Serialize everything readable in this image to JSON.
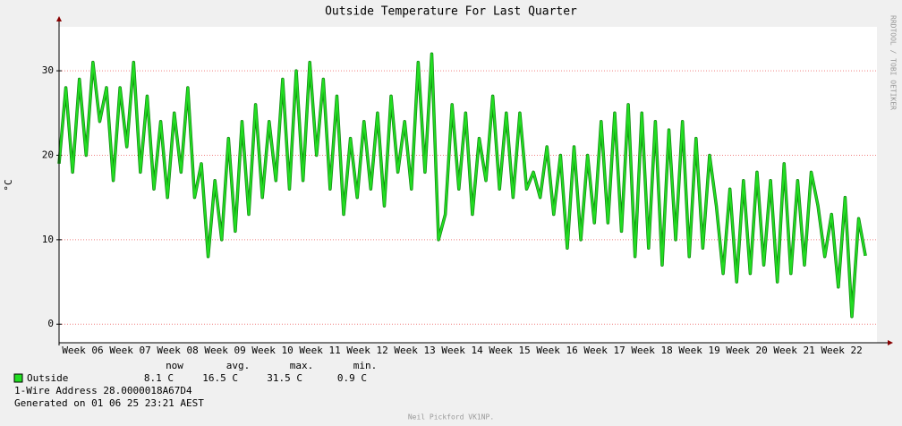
{
  "chart_data": {
    "type": "line",
    "title": "Outside Temperature For Last Quarter",
    "y_label": "°C",
    "watermark": "RRDTOOL / TOBI OETIKER",
    "x": [
      0,
      1,
      2,
      3,
      4,
      5,
      6,
      7,
      8,
      9,
      10,
      11,
      12,
      13,
      14,
      15,
      16,
      17,
      18,
      19,
      20,
      21,
      22,
      23,
      24,
      25,
      26,
      27,
      28,
      29,
      30,
      31,
      32,
      33,
      34,
      35,
      36,
      37,
      38,
      39,
      40,
      41,
      42,
      43,
      44,
      45,
      46,
      47,
      48,
      49,
      50,
      51,
      52,
      53,
      54,
      55,
      56,
      57,
      58,
      59,
      60,
      61,
      62,
      63,
      64,
      65,
      66,
      67,
      68,
      69,
      70,
      71,
      72,
      73,
      74,
      75,
      76,
      77,
      78,
      79,
      80,
      81,
      82,
      83,
      84,
      85,
      86,
      87,
      88,
      89,
      90,
      91,
      92,
      93,
      94,
      95,
      96,
      97,
      98,
      99,
      100,
      101,
      102,
      103,
      104,
      105,
      106,
      107,
      108,
      109,
      110,
      111,
      112,
      113,
      114,
      115,
      116,
      117,
      118,
      119
    ],
    "series": [
      {
        "name": "Outside",
        "color": "#22dd22",
        "values": [
          19,
          28,
          18,
          29,
          20,
          31,
          24,
          28,
          17,
          28,
          21,
          31,
          18,
          27,
          16,
          24,
          15,
          25,
          18,
          28,
          15,
          19,
          8,
          17,
          10,
          22,
          11,
          24,
          13,
          26,
          15,
          24,
          17,
          29,
          16,
          30,
          17,
          31,
          20,
          29,
          16,
          27,
          13,
          22,
          15,
          24,
          16,
          25,
          14,
          27,
          18,
          24,
          16,
          31,
          18,
          32,
          10,
          13,
          26,
          16,
          25,
          13,
          22,
          17,
          27,
          16,
          25,
          15,
          25,
          16,
          18,
          15,
          21,
          13,
          20,
          9,
          21,
          10,
          20,
          12,
          24,
          12,
          25,
          11,
          26,
          8,
          25,
          9,
          24,
          7,
          23,
          10,
          24,
          8,
          22,
          9,
          20,
          14,
          6,
          16,
          5,
          17,
          6,
          18,
          7,
          17,
          5,
          19,
          6,
          17,
          7,
          18,
          14,
          8,
          13,
          4.4,
          15,
          0.9,
          12.5,
          8.1
        ]
      }
    ],
    "xlim": [
      0,
      120.7
    ],
    "xticks": [
      {
        "value": 3.5,
        "label": "Week 06"
      },
      {
        "value": 10.5,
        "label": "Week 07"
      },
      {
        "value": 17.5,
        "label": "Week 08"
      },
      {
        "value": 24.5,
        "label": "Week 09"
      },
      {
        "value": 31.5,
        "label": "Week 10"
      },
      {
        "value": 38.5,
        "label": "Week 11"
      },
      {
        "value": 45.5,
        "label": "Week 12"
      },
      {
        "value": 52.5,
        "label": "Week 13"
      },
      {
        "value": 59.5,
        "label": "Week 14"
      },
      {
        "value": 66.5,
        "label": "Week 15"
      },
      {
        "value": 73.5,
        "label": "Week 16"
      },
      {
        "value": 80.5,
        "label": "Week 17"
      },
      {
        "value": 87.5,
        "label": "Week 18"
      },
      {
        "value": 94.5,
        "label": "Week 19"
      },
      {
        "value": 101.5,
        "label": "Week 20"
      },
      {
        "value": 108.5,
        "label": "Week 21"
      },
      {
        "value": 115.5,
        "label": "Week 22"
      }
    ],
    "ylim": [
      -2.2,
      35.2
    ],
    "yticks": [
      0,
      10,
      20,
      30
    ],
    "grid": true,
    "legend_stats": {
      "headers": [
        "now",
        "avg.",
        "max.",
        "min."
      ],
      "values": [
        "8.1 C",
        "16.5 C",
        "31.5 C",
        "0.9 C"
      ]
    },
    "footer": [
      "1-Wire Address 28.0000018A67D4",
      "Generated on 01 06 25 23:21 AEST"
    ],
    "author": "Neil Pickford VK1NP."
  }
}
